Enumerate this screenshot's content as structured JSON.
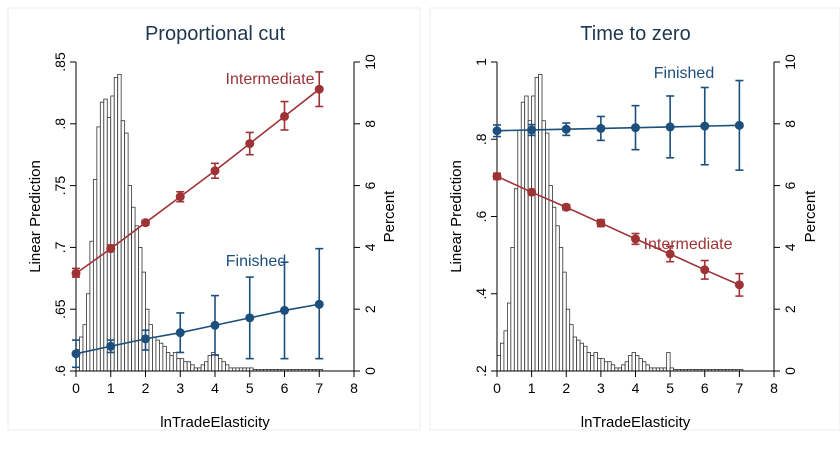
{
  "chart_data": [
    {
      "type": "line",
      "title": "Proportional cut",
      "xlabel": "lnTradeElasticity",
      "ylabel": "Linear Prediction",
      "y2label": "Percent",
      "xlim": [
        0,
        8
      ],
      "ylim": [
        0.6,
        0.85
      ],
      "y2lim": [
        0,
        10
      ],
      "xticks": [
        "0",
        "1",
        "2",
        "3",
        "4",
        "5",
        "6",
        "7",
        "8"
      ],
      "yticks": [
        ".6",
        ".65",
        ".7",
        ".75",
        ".8",
        ".85"
      ],
      "y2ticks": [
        "0",
        "2",
        "4",
        "6",
        "8",
        "10"
      ],
      "x": [
        0,
        1,
        2,
        3,
        4,
        5,
        6,
        7
      ],
      "series": [
        {
          "name": "Intermediate",
          "color": "#9e3336",
          "values": [
            0.679,
            0.699,
            0.72,
            0.741,
            0.762,
            0.784,
            0.806,
            0.828
          ],
          "ci_low": [
            0.676,
            0.697,
            0.718,
            0.737,
            0.756,
            0.775,
            0.795,
            0.814
          ],
          "ci_high": [
            0.683,
            0.702,
            0.722,
            0.745,
            0.768,
            0.793,
            0.818,
            0.842
          ]
        },
        {
          "name": "Finished",
          "color": "#1c4f7c",
          "values": [
            0.614,
            0.62,
            0.626,
            0.631,
            0.637,
            0.643,
            0.649,
            0.654
          ],
          "ci_low": [
            0.603,
            0.615,
            0.617,
            0.615,
            0.613,
            0.61,
            0.61,
            0.61
          ],
          "ci_high": [
            0.625,
            0.625,
            0.633,
            0.647,
            0.661,
            0.676,
            0.688,
            0.699
          ]
        }
      ],
      "histogram": {
        "axis": "y2",
        "bin_width": 0.1,
        "bin_start": 0,
        "percent": [
          0.7,
          1.1,
          1.5,
          2.5,
          4.2,
          6.2,
          7.9,
          8.7,
          8.8,
          8.2,
          8.9,
          9.5,
          9.6,
          8.1,
          7.7,
          6.0,
          5.3,
          4.7,
          4.0,
          3.2,
          2.0,
          1.5,
          1.1,
          1.0,
          0.9,
          0.8,
          0.6,
          0.5,
          0.6,
          0.4,
          0.4,
          0.3,
          0.3,
          0.2,
          0.1,
          0.1,
          0.2,
          0.3,
          0.5,
          0.6,
          0.5,
          0.4,
          0.3,
          0.2,
          0.1,
          0.1,
          0.1,
          0.1,
          0.1,
          0.1,
          0.1,
          0.05,
          0.05,
          0.05,
          0.05,
          0.05,
          0.05,
          0.05,
          0.05,
          0.05,
          0.05,
          0.05,
          0.05,
          0.05,
          0.05,
          0.05,
          0.05,
          0.05,
          0.05,
          0.05,
          0.05
        ]
      },
      "grid": false,
      "legend": "none"
    },
    {
      "type": "line",
      "title": "Time to zero",
      "xlabel": "lnTradeElasticity",
      "ylabel": "Linear Prediction",
      "y2label": "Percent",
      "xlim": [
        0,
        8
      ],
      "ylim": [
        0.2,
        1.0
      ],
      "y2lim": [
        0,
        10
      ],
      "xticks": [
        "0",
        "1",
        "2",
        "3",
        "4",
        "5",
        "6",
        "7",
        "8"
      ],
      "yticks": [
        ".2",
        ".4",
        ".6",
        ".8",
        "1"
      ],
      "y2ticks": [
        "0",
        "2",
        "4",
        "6",
        "8",
        "10"
      ],
      "x": [
        0,
        1,
        2,
        3,
        4,
        5,
        6,
        7
      ],
      "series": [
        {
          "name": "Finished",
          "color": "#1c4f7c",
          "values": [
            0.822,
            0.824,
            0.826,
            0.828,
            0.83,
            0.832,
            0.834,
            0.836
          ],
          "ci_low": [
            0.807,
            0.81,
            0.81,
            0.797,
            0.773,
            0.752,
            0.734,
            0.72
          ],
          "ci_high": [
            0.837,
            0.838,
            0.842,
            0.859,
            0.887,
            0.912,
            0.934,
            0.952
          ]
        },
        {
          "name": "Intermediate",
          "color": "#9e3336",
          "values": [
            0.704,
            0.663,
            0.624,
            0.583,
            0.542,
            0.503,
            0.462,
            0.423
          ],
          "ci_low": [
            0.696,
            0.656,
            0.617,
            0.574,
            0.528,
            0.483,
            0.438,
            0.394
          ],
          "ci_high": [
            0.712,
            0.67,
            0.631,
            0.592,
            0.556,
            0.523,
            0.486,
            0.452
          ]
        }
      ],
      "histogram": {
        "axis": "y2",
        "bin_width": 0.1,
        "bin_start": 0,
        "percent": [
          0.5,
          0.9,
          1.3,
          2.2,
          4.0,
          5.9,
          7.8,
          8.7,
          8.9,
          8.1,
          8.9,
          9.5,
          9.6,
          8.1,
          7.7,
          6.0,
          5.3,
          4.7,
          4.0,
          3.2,
          2.0,
          1.5,
          1.1,
          1.0,
          0.9,
          0.8,
          0.6,
          0.5,
          0.6,
          0.4,
          0.4,
          0.3,
          0.3,
          0.2,
          0.1,
          0.1,
          0.2,
          0.3,
          0.5,
          0.6,
          0.5,
          0.4,
          0.3,
          0.2,
          0.1,
          0.1,
          0.1,
          0.1,
          0.1,
          0.6,
          0.1,
          0.05,
          0.05,
          0.05,
          0.05,
          0.05,
          0.05,
          0.05,
          0.05,
          0.05,
          0.05,
          0.05,
          0.05,
          0.05,
          0.05,
          0.05,
          0.05,
          0.05,
          0.05,
          0.05,
          0.05
        ]
      },
      "grid": false,
      "legend": "none"
    }
  ]
}
